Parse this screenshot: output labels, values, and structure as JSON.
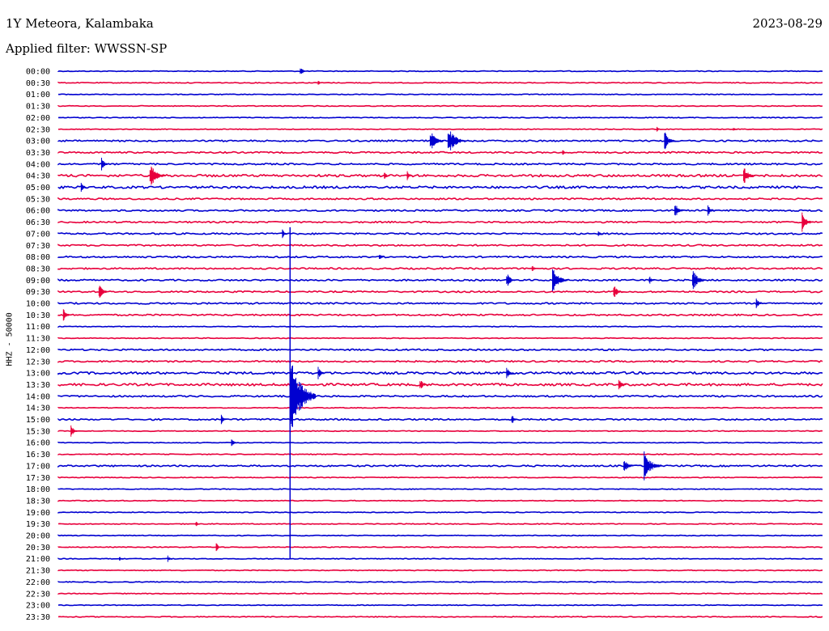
{
  "header": {
    "station": "1Y Meteora, Kalambaka",
    "filter": "Applied filter: WWSSN-SP",
    "date": "2023-08-29"
  },
  "colors": {
    "trace_a": "#0000d0",
    "trace_b": "#e8003c"
  },
  "chart_data": {
    "type": "helicorder",
    "title": "1Y Meteora, Kalambaka",
    "subtitle": "Applied filter: WWSSN-SP",
    "date": "2023-08-29",
    "ylabel": "HHZ - 50000",
    "row_minutes": 30,
    "rows": [
      "00:00",
      "00:30",
      "01:00",
      "01:30",
      "02:00",
      "02:30",
      "03:00",
      "03:30",
      "04:00",
      "04:30",
      "05:00",
      "05:30",
      "06:00",
      "06:30",
      "07:00",
      "07:30",
      "08:00",
      "08:30",
      "09:00",
      "09:30",
      "10:00",
      "10:30",
      "11:00",
      "11:30",
      "12:00",
      "12:30",
      "13:00",
      "13:30",
      "14:00",
      "14:30",
      "15:00",
      "15:30",
      "16:00",
      "16:30",
      "17:00",
      "17:30",
      "18:00",
      "18:30",
      "19:00",
      "19:30",
      "20:00",
      "20:30",
      "21:00",
      "21:30",
      "22:00",
      "22:30",
      "23:00",
      "23:30"
    ],
    "noise_level": [
      1,
      1,
      1,
      1,
      1,
      1,
      2,
      2,
      2,
      3,
      3,
      2,
      2,
      2,
      2,
      2,
      2,
      2,
      2,
      2,
      2,
      2,
      1,
      1,
      2,
      2,
      3,
      3,
      2,
      1,
      2,
      1,
      1,
      1,
      2,
      1,
      1,
      1,
      1,
      1,
      1,
      1,
      1,
      1,
      1,
      1,
      1,
      1
    ],
    "events": [
      {
        "row": "00:00",
        "minute": 9.5,
        "amplitude": 7
      },
      {
        "row": "00:30",
        "minute": 10.2,
        "amplitude": 3
      },
      {
        "row": "02:30",
        "minute": 23.5,
        "amplitude": 3
      },
      {
        "row": "02:30",
        "minute": 26.5,
        "amplitude": 3
      },
      {
        "row": "03:00",
        "minute": 23.8,
        "amplitude": 12
      },
      {
        "row": "03:00",
        "minute": 15.3,
        "amplitude": 18
      },
      {
        "row": "03:00",
        "minute": 14.6,
        "amplitude": 14
      },
      {
        "row": "03:30",
        "minute": 19.8,
        "amplitude": 4
      },
      {
        "row": "04:00",
        "minute": 1.7,
        "amplitude": 8
      },
      {
        "row": "04:30",
        "minute": 3.6,
        "amplitude": 16
      },
      {
        "row": "04:30",
        "minute": 13.7,
        "amplitude": 6
      },
      {
        "row": "04:30",
        "minute": 12.8,
        "amplitude": 6
      },
      {
        "row": "04:30",
        "minute": 26.9,
        "amplitude": 12
      },
      {
        "row": "05:00",
        "minute": 0.9,
        "amplitude": 6
      },
      {
        "row": "06:00",
        "minute": 24.2,
        "amplitude": 10
      },
      {
        "row": "06:00",
        "minute": 25.5,
        "amplitude": 8
      },
      {
        "row": "06:30",
        "minute": 29.2,
        "amplitude": 12
      },
      {
        "row": "07:00",
        "minute": 8.8,
        "amplitude": 6
      },
      {
        "row": "07:00",
        "minute": 21.2,
        "amplitude": 5
      },
      {
        "row": "08:00",
        "minute": 12.6,
        "amplitude": 5
      },
      {
        "row": "08:30",
        "minute": 18.6,
        "amplitude": 5
      },
      {
        "row": "09:00",
        "minute": 17.6,
        "amplitude": 10
      },
      {
        "row": "09:00",
        "minute": 19.4,
        "amplitude": 16
      },
      {
        "row": "09:00",
        "minute": 23.2,
        "amplitude": 6
      },
      {
        "row": "09:00",
        "minute": 24.9,
        "amplitude": 14
      },
      {
        "row": "09:30",
        "minute": 1.6,
        "amplitude": 10
      },
      {
        "row": "09:30",
        "minute": 21.8,
        "amplitude": 10
      },
      {
        "row": "10:00",
        "minute": 27.4,
        "amplitude": 7
      },
      {
        "row": "10:30",
        "minute": 0.2,
        "amplitude": 8
      },
      {
        "row": "13:00",
        "minute": 10.2,
        "amplitude": 8
      },
      {
        "row": "13:00",
        "minute": 17.6,
        "amplitude": 8
      },
      {
        "row": "13:30",
        "minute": 14.2,
        "amplitude": 8
      },
      {
        "row": "13:30",
        "minute": 22.0,
        "amplitude": 8
      },
      {
        "row": "14:00",
        "minute": 9.1,
        "amplitude": 55
      },
      {
        "row": "15:00",
        "minute": 6.4,
        "amplitude": 6
      },
      {
        "row": "15:00",
        "minute": 17.8,
        "amplitude": 7
      },
      {
        "row": "15:30",
        "minute": 0.5,
        "amplitude": 8
      },
      {
        "row": "16:00",
        "minute": 6.8,
        "amplitude": 6
      },
      {
        "row": "17:00",
        "minute": 22.2,
        "amplitude": 10
      },
      {
        "row": "17:00",
        "minute": 23.0,
        "amplitude": 18
      },
      {
        "row": "19:30",
        "minute": 5.4,
        "amplitude": 4
      },
      {
        "row": "20:30",
        "minute": 6.2,
        "amplitude": 6
      },
      {
        "row": "21:00",
        "minute": 2.4,
        "amplitude": 4
      },
      {
        "row": "21:00",
        "minute": 4.3,
        "amplitude": 5
      }
    ]
  }
}
